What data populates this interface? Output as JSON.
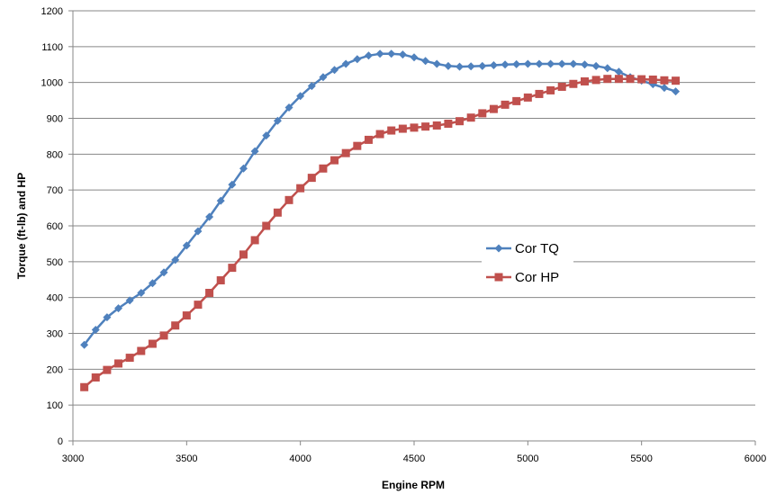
{
  "colors": {
    "tq": "#4F81BD",
    "hp": "#C0504D",
    "grid": "#878787",
    "axis": "#878787"
  },
  "chart_data": {
    "type": "line",
    "title": "",
    "xlabel": "Engine RPM",
    "ylabel": "Torque (ft-lb) and HP",
    "xlim": [
      3000,
      6000
    ],
    "ylim": [
      0,
      1200
    ],
    "xticks": [
      "3000",
      "3500",
      "4000",
      "4500",
      "5000",
      "5500",
      "6000"
    ],
    "yticks": [
      "0",
      "100",
      "200",
      "300",
      "400",
      "500",
      "600",
      "700",
      "800",
      "900",
      "1000",
      "1100",
      "1200"
    ],
    "grid": "horizontal",
    "legend_position": "right",
    "x": [
      3050,
      3100,
      3150,
      3200,
      3250,
      3300,
      3350,
      3400,
      3450,
      3500,
      3550,
      3600,
      3650,
      3700,
      3750,
      3800,
      3850,
      3900,
      3950,
      4000,
      4050,
      4100,
      4150,
      4200,
      4250,
      4300,
      4350,
      4400,
      4450,
      4500,
      4550,
      4600,
      4650,
      4700,
      4750,
      4800,
      4850,
      4900,
      4950,
      5000,
      5050,
      5100,
      5150,
      5200,
      5250,
      5300,
      5350,
      5400,
      5450,
      5500,
      5550,
      5600,
      5650
    ],
    "series": [
      {
        "name": "Cor TQ",
        "marker": "diamond",
        "values": [
          268,
          310,
          345,
          370,
          392,
          413,
          440,
          470,
          505,
          545,
          585,
          625,
          670,
          715,
          760,
          808,
          852,
          893,
          930,
          962,
          990,
          1015,
          1035,
          1052,
          1065,
          1075,
          1080,
          1080,
          1078,
          1070,
          1060,
          1052,
          1046,
          1044,
          1045,
          1046,
          1048,
          1050,
          1051,
          1052,
          1052,
          1052,
          1052,
          1052,
          1050,
          1046,
          1040,
          1030,
          1015,
          1005,
          995,
          985,
          975
        ]
      },
      {
        "name": "Cor HP",
        "marker": "square",
        "values": [
          150,
          177,
          198,
          216,
          232,
          251,
          271,
          294,
          322,
          350,
          380,
          413,
          448,
          483,
          520,
          560,
          600,
          637,
          672,
          705,
          734,
          760,
          783,
          803,
          823,
          840,
          856,
          866,
          871,
          874,
          877,
          880,
          885,
          892,
          902,
          914,
          926,
          938,
          948,
          958,
          968,
          978,
          988,
          996,
          1003,
          1007,
          1010,
          1010,
          1010,
          1009,
          1008,
          1006,
          1005
        ]
      }
    ]
  }
}
